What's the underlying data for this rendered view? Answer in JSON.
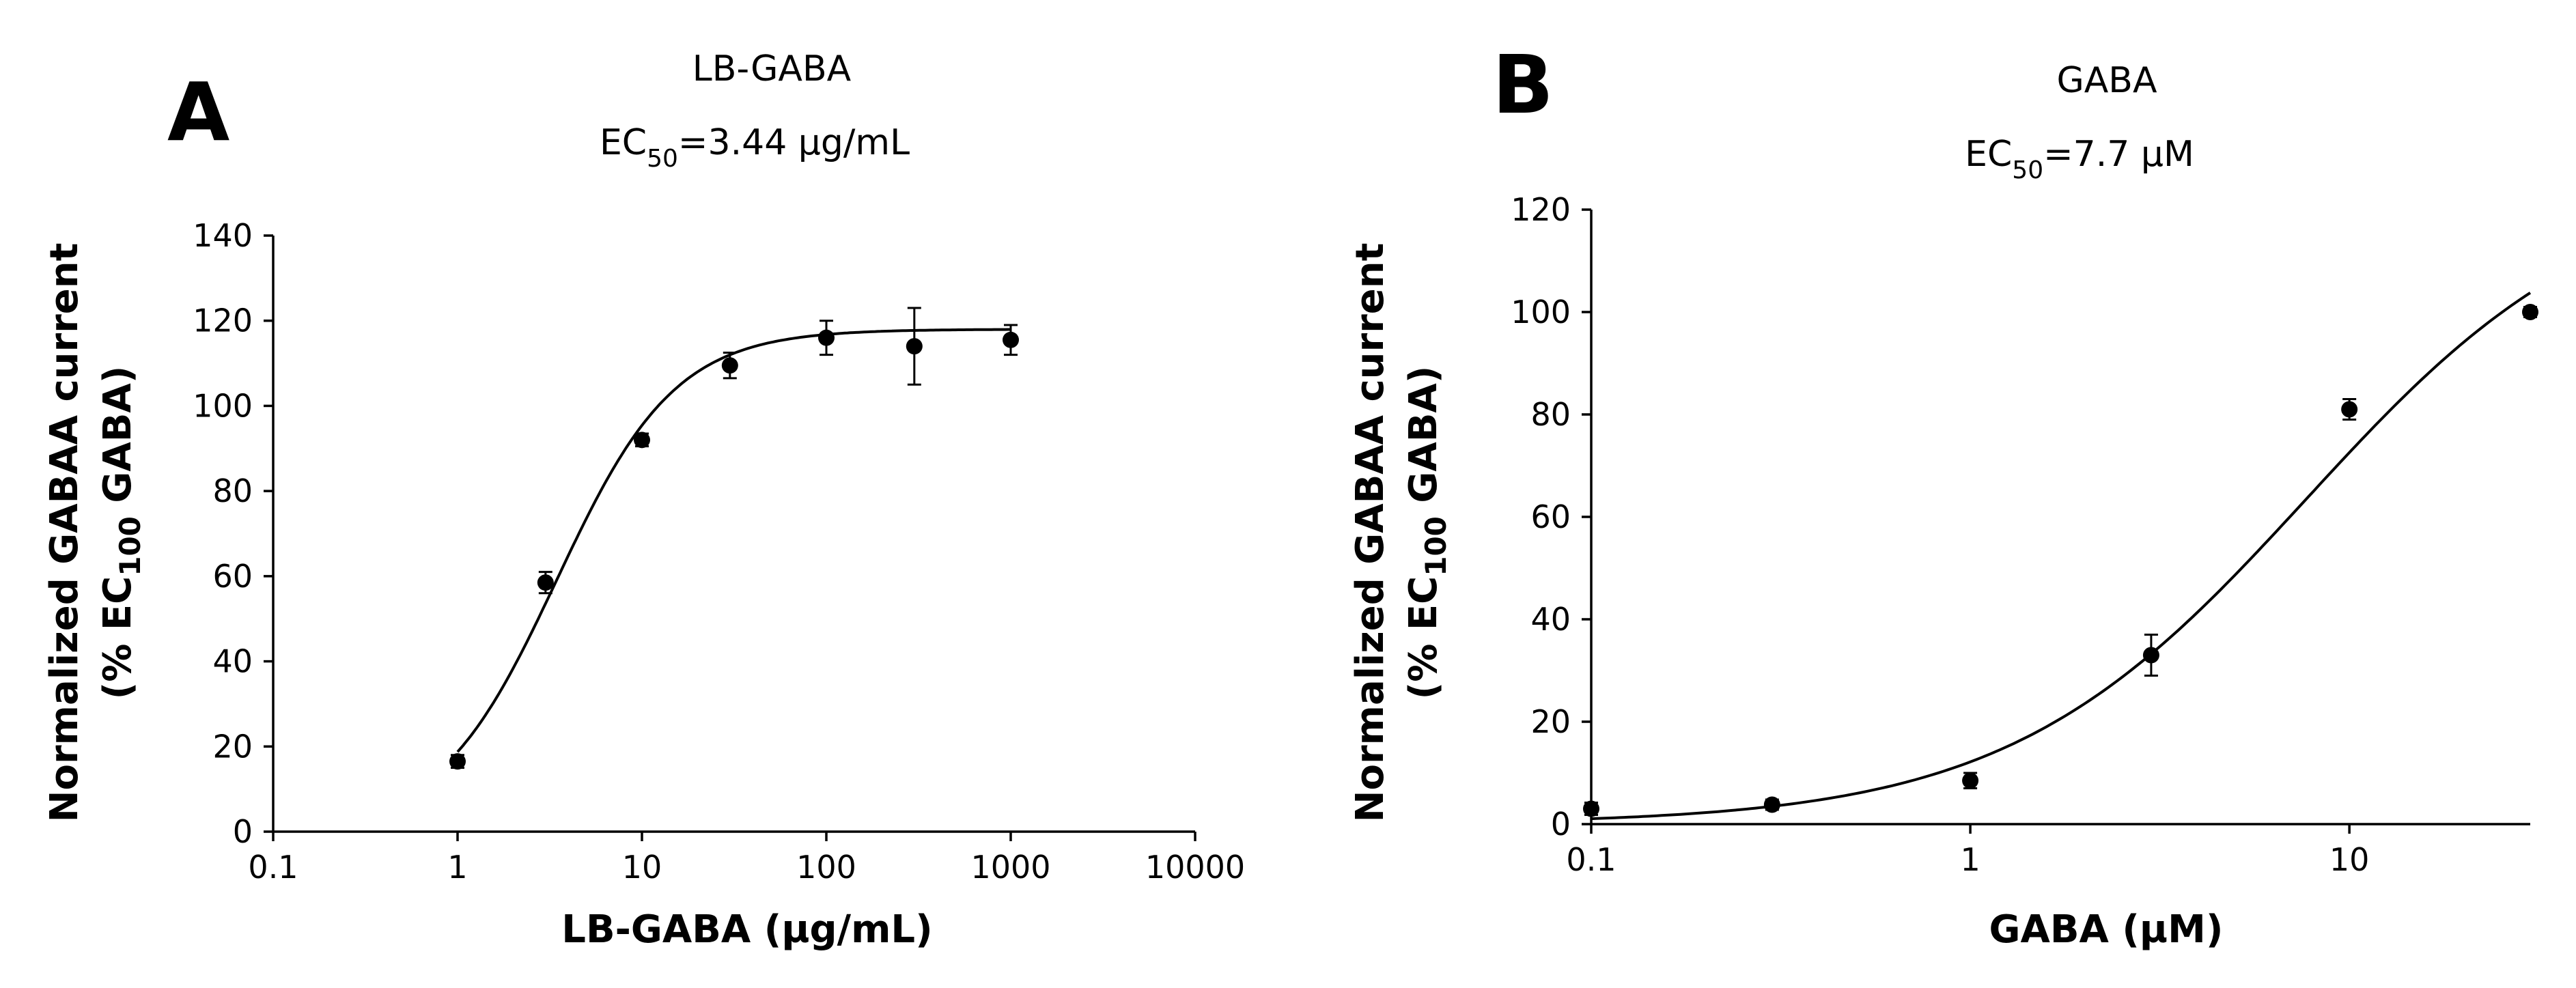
{
  "chart_data": [
    {
      "type": "scatter",
      "panel": "A",
      "title": "LB-GABA",
      "subtitle": {
        "prefix": "EC",
        "sub": "50",
        "suffix": "=3.44 µg/mL"
      },
      "xlabel": "LB-GABA (µg/mL)",
      "ylabel": {
        "line1": "Normalized GABAA current",
        "line2_prefix": "(% EC",
        "line2_sub": "100",
        "line2_suffix": " GABA)"
      },
      "xscale": "log",
      "xlim": [
        0.1,
        10000
      ],
      "ylim": [
        0,
        140
      ],
      "xticks": [
        0.1,
        1,
        10,
        100,
        1000,
        10000
      ],
      "xtick_labels": [
        "0.1",
        "1",
        "10",
        "100",
        "1000",
        "10000"
      ],
      "yticks": [
        0,
        20,
        40,
        60,
        80,
        100,
        120,
        140
      ],
      "ytick_labels": [
        "0",
        "20",
        "40",
        "60",
        "80",
        "100",
        "120",
        "140"
      ],
      "points": [
        {
          "x": 1,
          "y": 16.5,
          "err": 1.5
        },
        {
          "x": 3,
          "y": 58.5,
          "err": 2.5
        },
        {
          "x": 10,
          "y": 92,
          "err": 1.5
        },
        {
          "x": 30,
          "y": 109.5,
          "err": 3
        },
        {
          "x": 100,
          "y": 116,
          "err": 4
        },
        {
          "x": 300,
          "y": 114,
          "err": 9
        },
        {
          "x": 1000,
          "y": 115.5,
          "err": 3.5
        }
      ],
      "fit": {
        "model": "hill",
        "bottom": 0,
        "top": 118,
        "ec50": 3.44,
        "hill": 1.35,
        "xmin": 1,
        "xmax": 1000
      }
    },
    {
      "type": "scatter",
      "panel": "B",
      "title": "GABA",
      "subtitle": {
        "prefix": "EC",
        "sub": "50",
        "suffix": "=7.7 µM"
      },
      "xlabel": "GABA (µM)",
      "ylabel": {
        "line1": "Normalized GABAA current",
        "line2_prefix": "(% EC",
        "line2_sub": "100",
        "line2_suffix": " GABA)"
      },
      "xscale": "log",
      "xlim": [
        0.1,
        30
      ],
      "ylim": [
        0,
        120
      ],
      "xticks": [
        0.1,
        1,
        10
      ],
      "xtick_labels": [
        "0.1",
        "1",
        "10"
      ],
      "yticks": [
        0,
        20,
        40,
        60,
        80,
        100,
        120
      ],
      "ytick_labels": [
        "0",
        "20",
        "40",
        "60",
        "80",
        "100",
        "120"
      ],
      "points": [
        {
          "x": 0.1,
          "y": 3,
          "err": 1.2
        },
        {
          "x": 0.3,
          "y": 3.8,
          "err": 1
        },
        {
          "x": 1,
          "y": 8.5,
          "err": 1.5
        },
        {
          "x": 3,
          "y": 33,
          "err": 4
        },
        {
          "x": 10,
          "y": 81,
          "err": 2
        },
        {
          "x": 30,
          "y": 100,
          "err": 1
        }
      ],
      "fit": {
        "model": "hill",
        "bottom": 0,
        "top": 127,
        "ec50": 7.7,
        "hill": 1.1,
        "xmin": 0.1,
        "xmax": 30
      }
    }
  ]
}
